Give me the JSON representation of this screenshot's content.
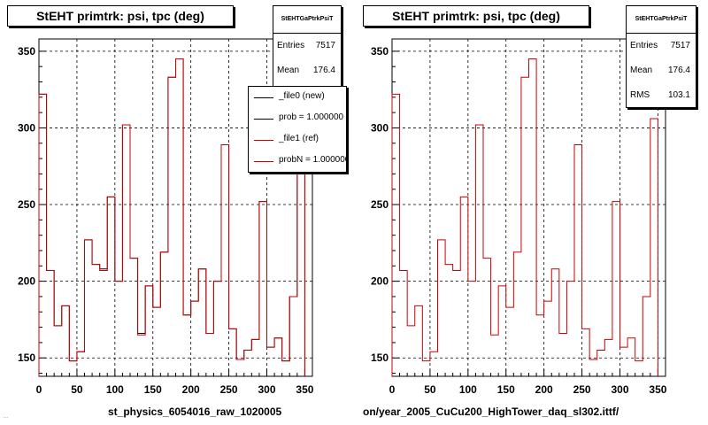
{
  "chart_data": [
    {
      "type": "histogram",
      "title": "StEHT primtrk: psi, tpc (deg)",
      "xlim": [
        0,
        360
      ],
      "ylim": [
        138,
        358
      ],
      "xticks": [
        0,
        50,
        100,
        150,
        200,
        250,
        300,
        350
      ],
      "yticks": [
        150,
        200,
        250,
        300,
        350
      ],
      "grid": true,
      "bin_width": 10,
      "x_edges": [
        0,
        10,
        20,
        30,
        40,
        50,
        60,
        70,
        80,
        90,
        100,
        110,
        120,
        130,
        140,
        150,
        160,
        170,
        180,
        190,
        200,
        210,
        220,
        230,
        240,
        250,
        260,
        270,
        280,
        290,
        300,
        310,
        320,
        330,
        340,
        350
      ],
      "series": [
        {
          "name": "_file0 (new)",
          "color": "#000000",
          "values": [
            322,
            207,
            171,
            184,
            148,
            154,
            227,
            211,
            208,
            255,
            200,
            302,
            215,
            166,
            197,
            183,
            219,
            333,
            345,
            178,
            187,
            208,
            166,
            200,
            289,
            169,
            149,
            155,
            162,
            252,
            157,
            163,
            148,
            190,
            306
          ]
        },
        {
          "name": "_file1 (ref)",
          "color": "#cc0000",
          "values": [
            322,
            207,
            171,
            184,
            148,
            154,
            227,
            211,
            207,
            255,
            200,
            302,
            215,
            165,
            197,
            183,
            219,
            333,
            345,
            178,
            187,
            208,
            166,
            200,
            289,
            169,
            149,
            155,
            162,
            252,
            157,
            163,
            148,
            190,
            306
          ]
        }
      ],
      "stats": {
        "title": "StEHTGaPtrkPsiT",
        "entries_label": "Entries",
        "entries": "7517",
        "mean_label": "Mean",
        "mean": "176.4"
      },
      "legend": [
        "_file0 (new)",
        "prob = 1.000000",
        "_file1 (ref)",
        "probN = 1.000000"
      ],
      "legend_placement": "top-right",
      "footer": "st_physics_6054016_raw_1020005"
    },
    {
      "type": "histogram",
      "title": "StEHT primtrk: psi, tpc (deg)",
      "xlim": [
        0,
        360
      ],
      "ylim": [
        138,
        358
      ],
      "xticks": [
        0,
        50,
        100,
        150,
        200,
        250,
        300,
        350
      ],
      "yticks": [
        150,
        200,
        250,
        300,
        350
      ],
      "grid": true,
      "bin_width": 10,
      "series": [
        {
          "name": "",
          "color": "#cc0000",
          "values": [
            322,
            207,
            171,
            184,
            148,
            154,
            227,
            211,
            207,
            255,
            200,
            302,
            215,
            165,
            197,
            183,
            219,
            333,
            345,
            178,
            187,
            208,
            166,
            200,
            289,
            169,
            149,
            155,
            162,
            252,
            157,
            163,
            148,
            190,
            306
          ]
        }
      ],
      "stats": {
        "title": "StEHTGaPtrkPsiT",
        "entries_label": "Entries",
        "entries": "7517",
        "mean_label": "Mean",
        "mean": "176.4",
        "rms_label": "RMS",
        "rms": "103.1"
      },
      "footer": "on/year_2005_CuCu200_HighTower_daq_sl302.ittf/"
    }
  ],
  "footnote": "..."
}
